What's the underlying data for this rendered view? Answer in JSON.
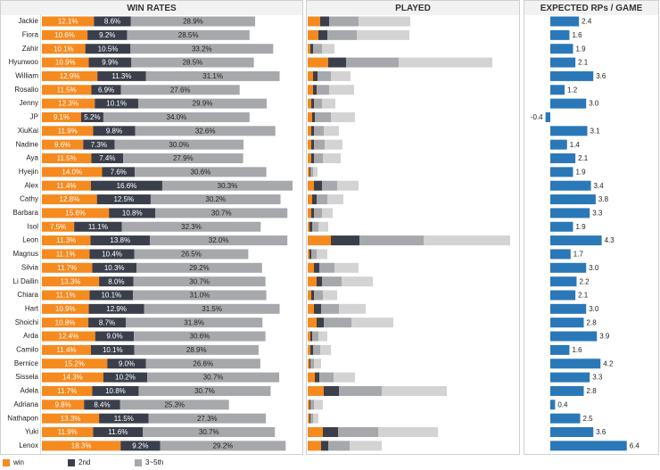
{
  "chart_data": [
    {
      "type": "stacked-bar-h",
      "title": "WIN RATES",
      "categories": [
        "Jackie",
        "Fiora",
        "Zahir",
        "Hyunwoo",
        "William",
        "Rosalio",
        "Jenny",
        "JP",
        "XiuKai",
        "Nadine",
        "Aya",
        "Hyejin",
        "Alex",
        "Cathy",
        "Barbara",
        "Isol",
        "Leon",
        "Magnus",
        "Silvia",
        "Li Dailin",
        "Chiara",
        "Hart",
        "Shoichi",
        "Arda",
        "Camilo",
        "Bernice",
        "Sissela",
        "Adela",
        "Adriana",
        "Nathapon",
        "Yuki",
        "Lenox"
      ],
      "legend": "bottom-left",
      "series": [
        {
          "name": "win",
          "color": "#f58a1f",
          "values": [
            12.1,
            10.6,
            10.1,
            10.9,
            12.9,
            11.5,
            12.3,
            9.1,
            11.9,
            9.6,
            11.5,
            14.0,
            11.4,
            12.8,
            15.6,
            7.5,
            11.3,
            11.1,
            11.7,
            13.3,
            11.1,
            10.9,
            10.8,
            12.4,
            11.4,
            15.2,
            14.3,
            11.7,
            9.8,
            13.3,
            11.9,
            18.3
          ],
          "value_labels": [
            "12.1%",
            "10.6%",
            "10.1%",
            "10.9%",
            "12.9%",
            "11.5%",
            "12.3%",
            "9.1%",
            "11.9%",
            "9.6%",
            "11.5%",
            "14.0%",
            "11.4%",
            "12.8%",
            "15.6%",
            "7.5%",
            "11.3%",
            "11.1%",
            "11.7%",
            "13.3%",
            "11.1%",
            "10.9%",
            "10.8%",
            "12.4%",
            "11.4%",
            "15.2%",
            "14.3%",
            "11.7%",
            "9.8%",
            "13.3%",
            "11.9%",
            "18.3%"
          ]
        },
        {
          "name": "2nd",
          "color": "#3b3f4b",
          "values": [
            8.6,
            9.2,
            10.5,
            9.9,
            11.3,
            6.9,
            10.1,
            5.2,
            9.8,
            7.3,
            7.4,
            7.6,
            16.6,
            12.5,
            10.8,
            11.1,
            13.8,
            10.4,
            10.3,
            8.0,
            10.1,
            12.9,
            8.7,
            9.0,
            10.1,
            9.0,
            10.2,
            10.8,
            8.4,
            11.5,
            11.6,
            9.2
          ],
          "value_labels": [
            "8.6%",
            "9.2%",
            "10.5%",
            "9.9%",
            "11.3%",
            "6.9%",
            "10.1%",
            "5.2%",
            "9.8%",
            "7.3%",
            "7.4%",
            "7.6%",
            "16.6%",
            "12.5%",
            "10.8%",
            "11.1%",
            "13.8%",
            "10.4%",
            "10.3%",
            "8.0%",
            "10.1%",
            "12.9%",
            "8.7%",
            "9.0%",
            "10.1%",
            "9.0%",
            "10.2%",
            "10.8%",
            "8.4%",
            "11.5%",
            "11.6%",
            "9.2%"
          ]
        },
        {
          "name": "3~5th",
          "color": "#a6a8ab",
          "values": [
            28.9,
            28.5,
            33.2,
            28.5,
            31.1,
            27.6,
            29.9,
            34.0,
            32.6,
            30.0,
            27.9,
            30.6,
            30.3,
            30.2,
            30.7,
            32.3,
            32.0,
            26.5,
            29.2,
            30.7,
            31.0,
            31.5,
            31.8,
            30.6,
            28.9,
            26.6,
            30.7,
            30.7,
            25.3,
            27.3,
            30.7,
            29.2
          ],
          "value_labels": [
            "28.9%",
            "28.5%",
            "33.2%",
            "28.5%",
            "31.1%",
            "27.6%",
            "29.9%",
            "34.0%",
            "32.6%",
            "30.0%",
            "27.9%",
            "30.6%",
            "30.3%",
            "30.2%",
            "30.7%",
            "32.3%",
            "32.0%",
            "26.5%",
            "29.2%",
            "30.7%",
            "31.0%",
            "31.5%",
            "31.8%",
            "30.6%",
            "28.9%",
            "26.6%",
            "30.7%",
            "30.7%",
            "25.3%",
            "27.3%",
            "30.7%",
            "29.2%"
          ]
        }
      ]
    },
    {
      "type": "stacked-bar-h",
      "title": "PLAYED",
      "series": [
        {
          "color": "#f58a1f",
          "values": [
            14,
            12,
            3,
            23,
            6,
            6,
            4,
            5,
            4,
            4,
            4,
            2,
            7,
            5,
            4,
            2,
            26,
            2,
            7,
            10,
            4,
            7,
            10,
            3,
            3,
            2,
            8,
            18,
            2,
            2,
            17,
            15
          ]
        },
        {
          "color": "#3b3f4b",
          "values": [
            10,
            10,
            3,
            20,
            5,
            4,
            3,
            3,
            3,
            3,
            3,
            1,
            9,
            5,
            3,
            3,
            32,
            2,
            6,
            6,
            3,
            8,
            8,
            2,
            3,
            1,
            5,
            17,
            1,
            1,
            17,
            8
          ]
        },
        {
          "color": "#a6a8ab",
          "values": [
            33,
            33,
            10,
            59,
            15,
            14,
            9,
            18,
            11,
            12,
            10,
            3,
            17,
            12,
            9,
            7,
            72,
            6,
            17,
            22,
            10,
            20,
            31,
            7,
            8,
            4,
            16,
            48,
            4,
            3,
            45,
            24
          ]
        },
        {
          "color": "#d3d3d3",
          "values": [
            58,
            59,
            14,
            105,
            22,
            28,
            15,
            27,
            17,
            20,
            20,
            5,
            24,
            18,
            12,
            11,
            97,
            12,
            27,
            35,
            16,
            30,
            47,
            10,
            12,
            8,
            24,
            73,
            10,
            6,
            67,
            36
          ]
        }
      ]
    },
    {
      "type": "bar-h",
      "title": "EXPECTED RPs / GAME",
      "color": "#2a78b8",
      "values": [
        2.4,
        1.6,
        1.9,
        2.1,
        3.6,
        1.2,
        3.0,
        -0.4,
        3.1,
        1.4,
        2.1,
        1.9,
        3.4,
        3.8,
        3.3,
        1.9,
        4.3,
        1.7,
        3.0,
        2.2,
        2.1,
        3.0,
        2.8,
        3.9,
        1.6,
        4.2,
        3.3,
        2.8,
        0.4,
        2.5,
        3.6,
        6.4
      ],
      "value_labels": [
        "2.4",
        "1.6",
        "1.9",
        "2.1",
        "3.6",
        "1.2",
        "3.0",
        "-0.4",
        "3.1",
        "1.4",
        "2.1",
        "1.9",
        "3.4",
        "3.8",
        "3.3",
        "1.9",
        "4.3",
        "1.7",
        "3.0",
        "2.2",
        "2.1",
        "3.0",
        "2.8",
        "3.9",
        "1.6",
        "4.2",
        "3.3",
        "2.8",
        "0.4",
        "2.5",
        "3.6",
        "6.4"
      ]
    }
  ]
}
